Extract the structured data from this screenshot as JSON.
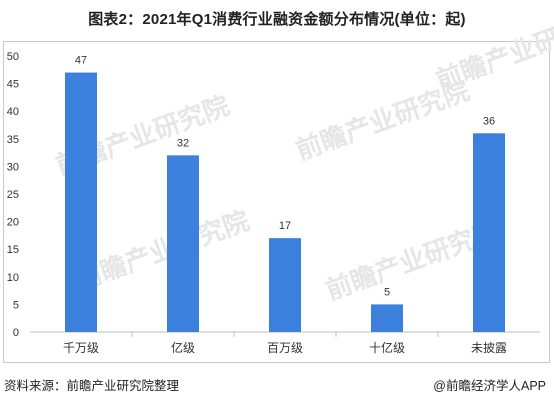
{
  "title": "图表2：2021年Q1消费行业融资金额分布情况(单位：起)",
  "footer": {
    "source": "资料来源：前瞻产业研究院整理",
    "brand": "@前瞻经济学人APP"
  },
  "watermark": {
    "text": "前瞻产业研究院",
    "color": "#e6e6e6"
  },
  "colors": {
    "bar": "#3a80dc",
    "axis": "#bfbfbf",
    "text": "#333333"
  },
  "chart_data": {
    "type": "bar",
    "categories": [
      "千万级",
      "亿级",
      "百万级",
      "十亿级",
      "未披露"
    ],
    "values": [
      47,
      32,
      17,
      5,
      36
    ],
    "title": "图表2：2021年Q1消费行业融资金额分布情况(单位：起)",
    "xlabel": "",
    "ylabel": "",
    "ylim": [
      0,
      50
    ],
    "yticks": [
      0,
      5,
      10,
      15,
      20,
      25,
      30,
      35,
      40,
      45,
      50
    ],
    "grid": false,
    "legend": "none",
    "data_labels": true
  }
}
